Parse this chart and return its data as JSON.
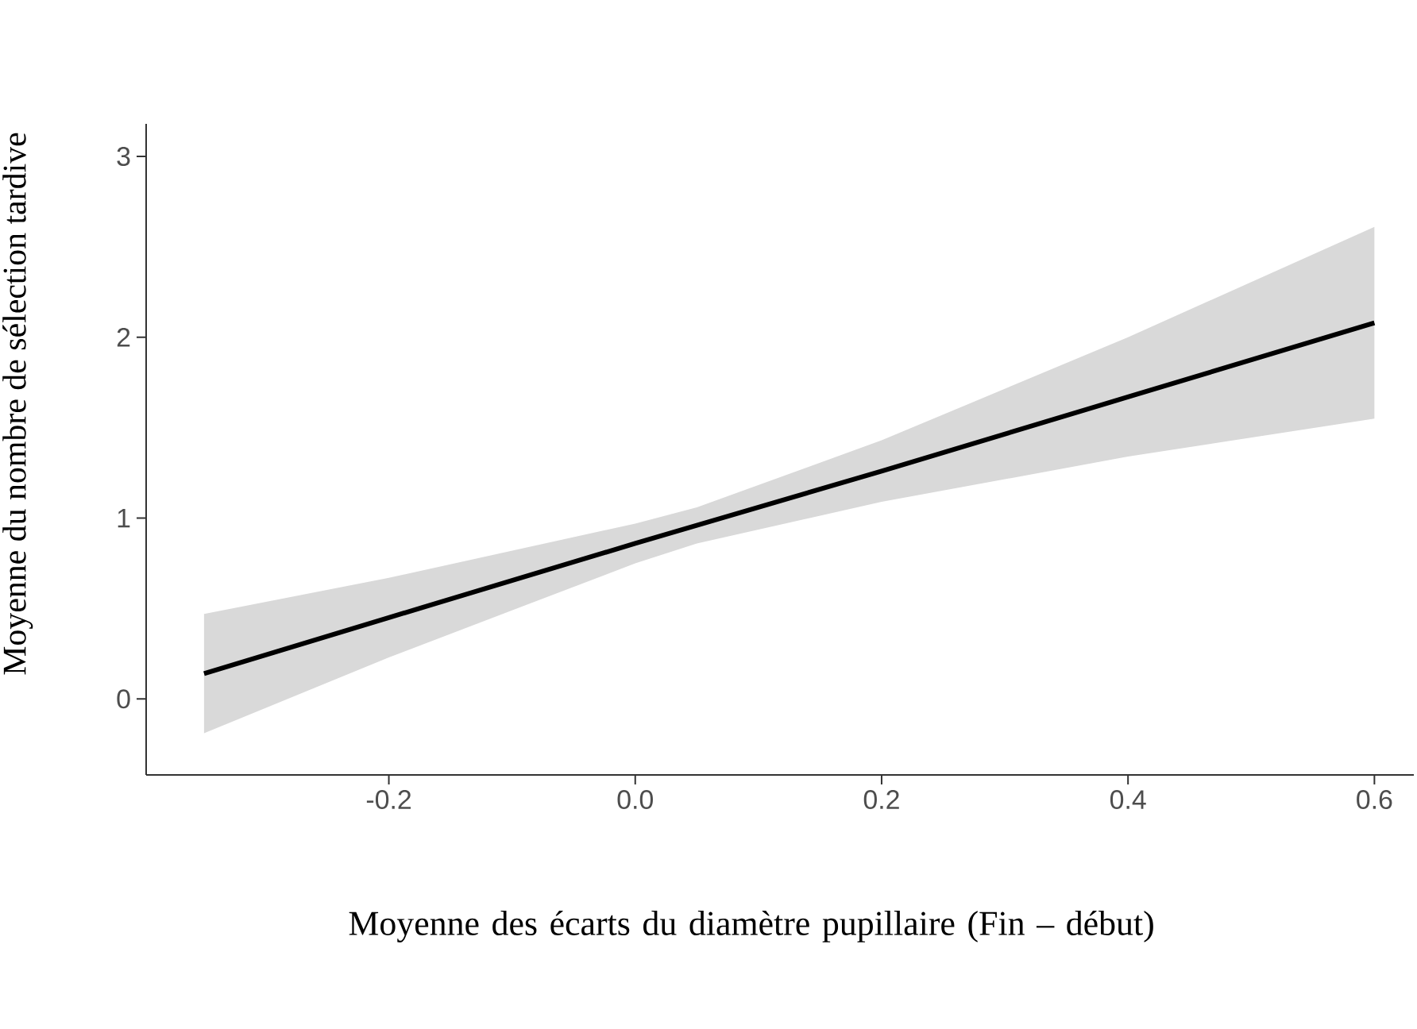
{
  "chart_data": {
    "type": "line",
    "xlabel": "Moyenne des écarts du diamètre pupillaire (Fin – début)",
    "ylabel": "Moyenne du nombre de sélection tardive",
    "xlim": [
      -0.397,
      0.632
    ],
    "ylim": [
      -0.42,
      3.18
    ],
    "xticks": [
      -0.2,
      {
        "value": 0,
        "label": "0.0"
      },
      0.2,
      0.4,
      0.6
    ],
    "yticks": [
      0,
      1,
      2,
      3
    ],
    "grid": false,
    "line_style": "solid",
    "series": [
      {
        "color": "#000000",
        "x": [
          -0.35,
          -0.2,
          0,
          0.05,
          0.2,
          0.4,
          0.6
        ],
        "values": [
          0.14,
          0.45,
          0.86,
          0.96,
          1.26,
          1.67,
          2.08
        ],
        "lower": [
          -0.19,
          0.23,
          0.75,
          0.86,
          1.09,
          1.34,
          1.55
        ],
        "upper": [
          0.47,
          0.67,
          0.97,
          1.06,
          1.43,
          2.0,
          2.61
        ]
      }
    ]
  }
}
